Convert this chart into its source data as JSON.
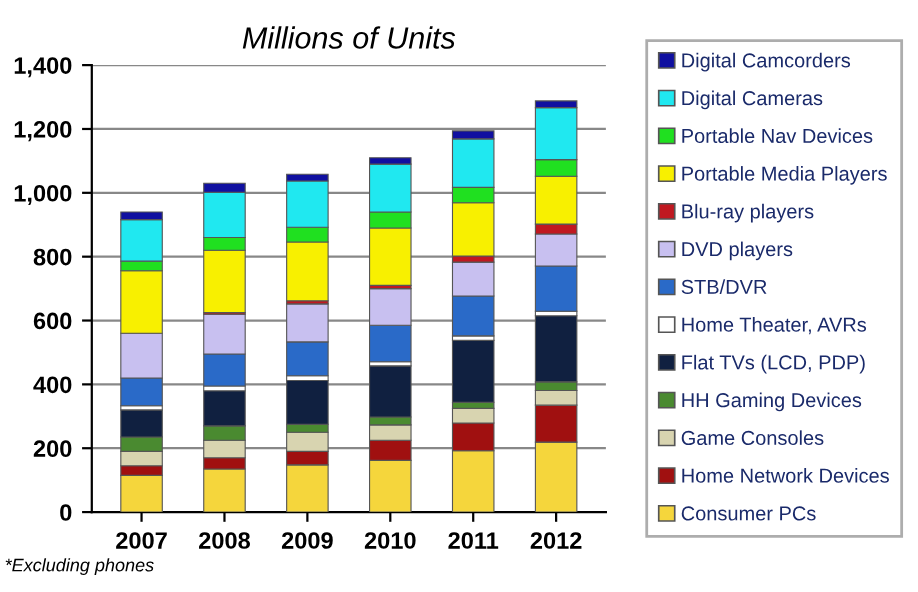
{
  "chart_data": {
    "type": "bar",
    "stacked": true,
    "title": "Millions of Units",
    "categories": [
      "2007",
      "2008",
      "2009",
      "2010",
      "2011",
      "2012"
    ],
    "series": [
      {
        "name": "Consumer PCs",
        "color": "#f5d63c",
        "values": [
          115,
          135,
          148,
          162,
          192,
          219
        ]
      },
      {
        "name": "Home Network Devices",
        "color": "#a01010",
        "values": [
          30,
          35,
          42,
          63,
          87,
          116
        ]
      },
      {
        "name": "Game Consoles",
        "color": "#d8d4b0",
        "values": [
          45,
          55,
          60,
          48,
          46,
          46
        ]
      },
      {
        "name": "HH Gaming Devices",
        "color": "#4a8a30",
        "values": [
          45,
          45,
          25,
          25,
          19,
          27
        ]
      },
      {
        "name": "Flat TVs (LCD, PDP)",
        "color": "#102040",
        "values": [
          85,
          110,
          137,
          160,
          194,
          207
        ]
      },
      {
        "name": "Home Theater, AVRs",
        "color": "#ffffff",
        "values": [
          13,
          15,
          15,
          13,
          14,
          14
        ]
      },
      {
        "name": "STB/DVR",
        "color": "#2a6ac8",
        "values": [
          87,
          100,
          106,
          114,
          125,
          142
        ]
      },
      {
        "name": "DVD players",
        "color": "#c8c0f0",
        "values": [
          140,
          125,
          119,
          115,
          106,
          100
        ]
      },
      {
        "name": "Blu-ray players",
        "color": "#c01820",
        "values": [
          null,
          5,
          10,
          10,
          19,
          31
        ]
      },
      {
        "name": "Portable Media Players",
        "color": "#f8f000",
        "values": [
          196,
          195,
          184,
          180,
          167,
          150
        ]
      },
      {
        "name": "Portable Nav Devices",
        "color": "#20e020",
        "values": [
          30,
          40,
          46,
          50,
          48,
          52
        ]
      },
      {
        "name": "Digital Cameras",
        "color": "#20e8f0",
        "values": [
          130,
          142,
          145,
          150,
          152,
          163
        ]
      },
      {
        "name": "Digital Camcorders",
        "color": "#1010a0",
        "values": [
          24,
          28,
          21,
          20,
          25,
          21
        ]
      }
    ],
    "ylim": [
      0,
      1400
    ],
    "yticks": [
      0,
      200,
      400,
      600,
      800,
      {
        "value": 1000,
        "label": "1,000"
      },
      {
        "value": 1200,
        "label": "1,200"
      },
      {
        "value": 1400,
        "label": "1,400"
      }
    ],
    "grid": "y",
    "legend": "right",
    "annotations": [
      "*Excluding phones"
    ]
  }
}
